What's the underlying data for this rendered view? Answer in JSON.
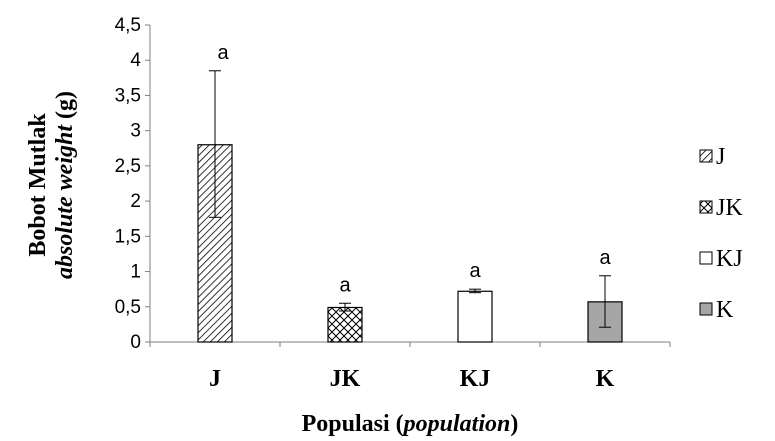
{
  "chart_data": {
    "type": "bar",
    "categories": [
      "J",
      "JK",
      "KJ",
      "K"
    ],
    "values": [
      2.8,
      0.49,
      0.72,
      0.57
    ],
    "error_low": [
      1.77,
      0.44,
      0.7,
      0.21
    ],
    "error_high": [
      3.85,
      0.55,
      0.75,
      0.94
    ],
    "significance": [
      "a",
      "a",
      "a",
      "a"
    ],
    "fills": [
      "hatch-diagonal",
      "hatch-crosshatch",
      "#ffffff",
      "#a6a6a6"
    ],
    "ylim": [
      0,
      4.5
    ],
    "yticks": [
      "0",
      "0,5",
      "1",
      "1,5",
      "2",
      "2,5",
      "3",
      "3,5",
      "4",
      "4,5"
    ],
    "ylabel_line1": "Bobot Mutlak",
    "ylabel_line2_italic": "absolute weight",
    "ylabel_line2_unit": " (g)",
    "xlabel_main": "Populasi (",
    "xlabel_italic": "population",
    "xlabel_end": ")",
    "legend": [
      "J",
      "JK",
      "KJ",
      "K"
    ],
    "legend_position": "right",
    "grid": false
  }
}
